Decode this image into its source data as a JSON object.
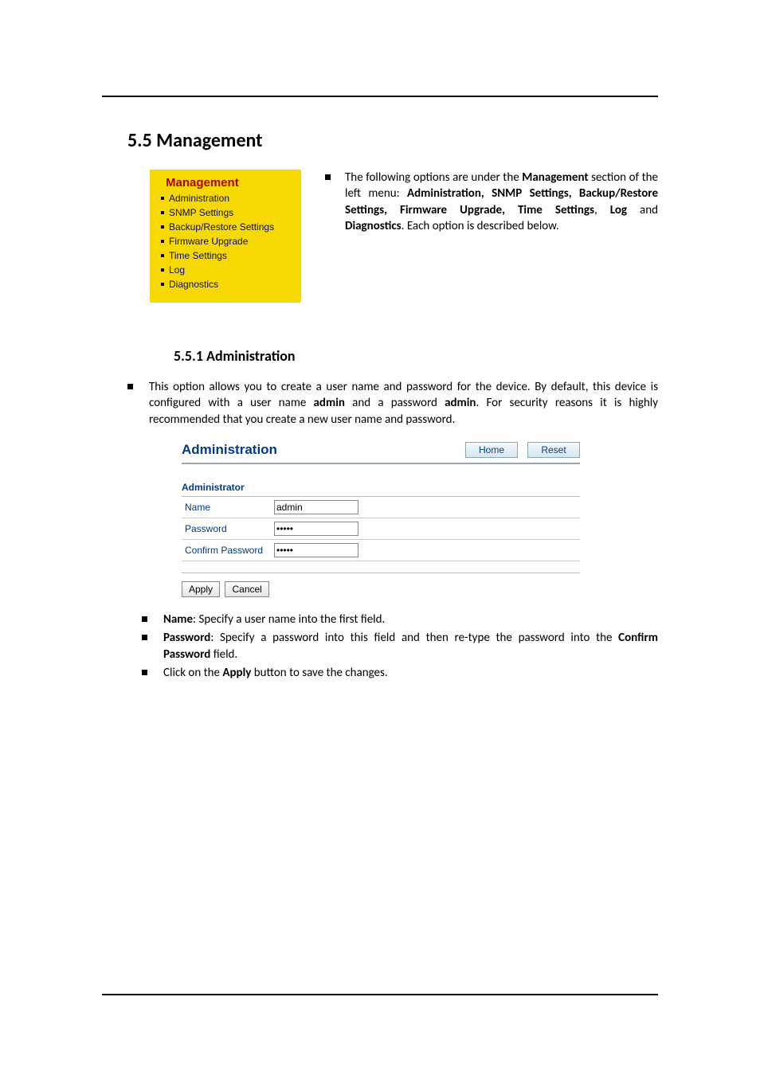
{
  "heading": "5.5 Management",
  "menu": {
    "title": "Management",
    "items": [
      "Administration",
      "SNMP Settings",
      "Backup/Restore Settings",
      "Firmware Upgrade",
      "Time Settings",
      "Log",
      "Diagnostics"
    ],
    "bg_color": "#f5d900",
    "title_color": "#b00000",
    "link_color": "#0a0a6a"
  },
  "intro": {
    "pre": "The following options are under the ",
    "b1": "Management",
    "mid1": " section of the left menu: ",
    "b2": "Administration, SNMP Settings, Backup/Restore Settings, Firmware Upgrade, Time Settings",
    "mid2": ", ",
    "b3": "Log",
    "mid3": " and ",
    "b4": "Diagnostics",
    "post": ". Each option is described below."
  },
  "subheading": "5.5.1   Administration",
  "admin_desc": {
    "pre": "This option allows you to create a user name and password for the device. By default, this device is configured with a user name ",
    "b1": "admin",
    "mid1": " and a password ",
    "b2": "admin",
    "post": ". For security reasons it is highly recommended that you create a new user name and password."
  },
  "panel": {
    "title": "Administration",
    "title_color": "#003a8a",
    "home_btn": "Home",
    "reset_btn": "Reset",
    "section_label": "Administrator",
    "rows": {
      "name_label": "Name",
      "name_value": "admin",
      "pass_label": "Password",
      "pass_value": "admin",
      "confirm_label": "Confirm Password",
      "confirm_value": "admin"
    },
    "apply_btn": "Apply",
    "cancel_btn": "Cancel"
  },
  "bullets": {
    "b1_lbl": "Name",
    "b1_txt": ": Specify a user name into the first field.",
    "b2_lbl": "Password",
    "b2_mid": ": Specify a password into this field and then re-type the password into the ",
    "b2_lbl2": "Confirm Password",
    "b2_end": " field.",
    "b3_pre": "Click on the ",
    "b3_lbl": "Apply",
    "b3_end": " button to save the changes."
  }
}
